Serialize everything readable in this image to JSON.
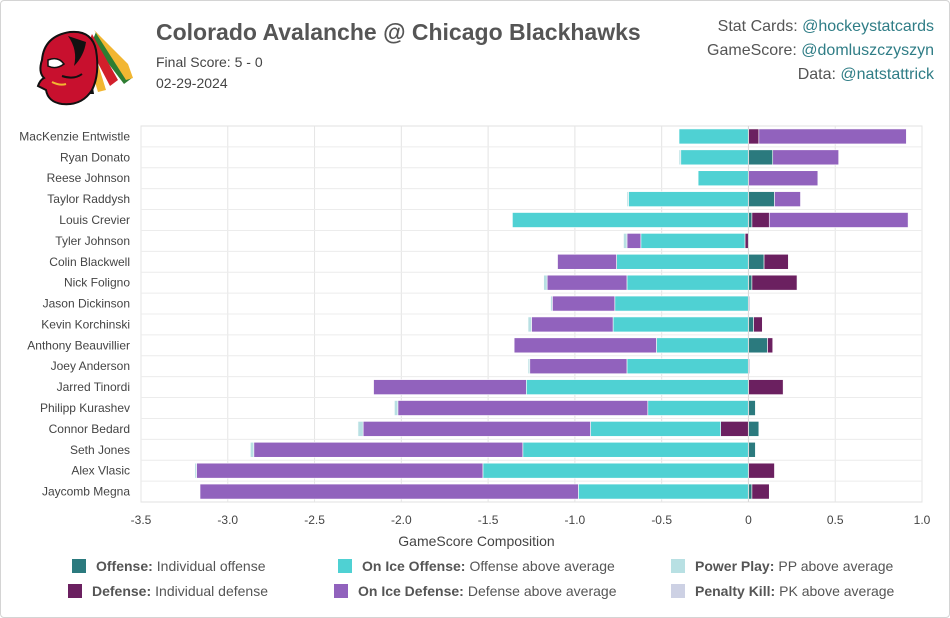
{
  "header": {
    "title": "Colorado Avalanche @ Chicago Blackhawks",
    "final_score": "Final Score: 5 - 0",
    "date": "02-29-2024"
  },
  "credits": [
    {
      "label": "Stat Cards:",
      "handle": "@hockeystatcards"
    },
    {
      "label": "GameScore:",
      "handle": "@domluszczyszyn"
    },
    {
      "label": "Data:",
      "handle": "@natstattrick"
    }
  ],
  "logo": {
    "name": "chicago-blackhawks-logo"
  },
  "chart_data": {
    "type": "bar",
    "orientation": "horizontal",
    "stacked": true,
    "xlabel": "GameScore Composition",
    "xlim": [
      -3.5,
      1.0
    ],
    "xticks": [
      -3.5,
      -3.0,
      -2.5,
      -2.0,
      -1.5,
      -1.0,
      -0.5,
      0,
      0.5,
      1.0
    ],
    "xtick_labels": [
      "-3.5",
      "-3.0",
      "-2.5",
      "-2.0",
      "-1.5",
      "-1.0",
      "-0.5",
      "0",
      "0.5",
      "1.0"
    ],
    "grid": true,
    "categories": [
      "MacKenzie Entwistle",
      "Ryan Donato",
      "Reese Johnson",
      "Taylor Raddysh",
      "Louis Crevier",
      "Tyler Johnson",
      "Colin Blackwell",
      "Nick Foligno",
      "Jason Dickinson",
      "Kevin Korchinski",
      "Anthony Beauvillier",
      "Joey Anderson",
      "Jarred Tinordi",
      "Philipp Kurashev",
      "Connor Bedard",
      "Seth Jones",
      "Alex Vlasic",
      "Jaycomb Megna"
    ],
    "series": [
      {
        "name": "Offense",
        "color": "#2b7a7e",
        "values": [
          0.0,
          0.14,
          0.0,
          0.15,
          0.02,
          0.0,
          0.09,
          0.02,
          0.0,
          0.03,
          0.11,
          0.0,
          0.0,
          0.04,
          0.06,
          0.04,
          0.0,
          0.02
        ]
      },
      {
        "name": "Defense",
        "color": "#6b2060",
        "values": [
          0.06,
          0.0,
          0.0,
          0.0,
          0.1,
          -0.02,
          0.14,
          0.26,
          0.0,
          0.05,
          0.03,
          0.0,
          0.2,
          0.0,
          -0.16,
          0.0,
          0.15,
          0.1
        ]
      },
      {
        "name": "On Ice Offense",
        "color": "#4fd1d3",
        "values": [
          -0.4,
          -0.39,
          -0.29,
          -0.69,
          -1.36,
          -0.6,
          -0.76,
          -0.7,
          -0.77,
          -0.78,
          -0.53,
          -0.7,
          -1.28,
          -0.58,
          -0.75,
          -1.3,
          -1.53,
          -0.98
        ]
      },
      {
        "name": "On Ice Defense",
        "color": "#9162bd",
        "values": [
          0.85,
          0.38,
          0.4,
          0.15,
          0.8,
          -0.08,
          -0.34,
          -0.46,
          -0.36,
          -0.47,
          -0.82,
          -0.56,
          -0.88,
          -1.44,
          -1.31,
          -1.55,
          -1.65,
          -2.18
        ]
      },
      {
        "name": "Power Play",
        "color": "#b8e0e3",
        "values": [
          0.0,
          -0.01,
          0.0,
          -0.01,
          0.0,
          -0.02,
          0.0,
          -0.02,
          -0.01,
          -0.02,
          0.0,
          -0.01,
          0.0,
          -0.02,
          -0.03,
          -0.02,
          -0.01,
          0.0
        ]
      },
      {
        "name": "Penalty Kill",
        "color": "#cdd1e4",
        "values": [
          0.0,
          0.0,
          0.0,
          0.0,
          0.0,
          0.0,
          0.0,
          0.0,
          0.01,
          0.0,
          0.0,
          0.01,
          0.0,
          0.0,
          0.0,
          0.0,
          0.0,
          0.0
        ]
      }
    ]
  },
  "legend": [
    {
      "bold": "Offense:",
      "text": "Individual offense",
      "color": "#2b7a7e"
    },
    {
      "bold": "On Ice Offense:",
      "text": "Offense above average",
      "color": "#4fd1d3"
    },
    {
      "bold": "Power Play:",
      "text": "PP above average",
      "color": "#b8e0e3"
    },
    {
      "bold": "Defense:",
      "text": "Individual defense",
      "color": "#6b2060"
    },
    {
      "bold": "On Ice Defense:",
      "text": "Defense above average",
      "color": "#9162bd"
    },
    {
      "bold": "Penalty Kill:",
      "text": "PK above average",
      "color": "#cdd1e4"
    }
  ]
}
